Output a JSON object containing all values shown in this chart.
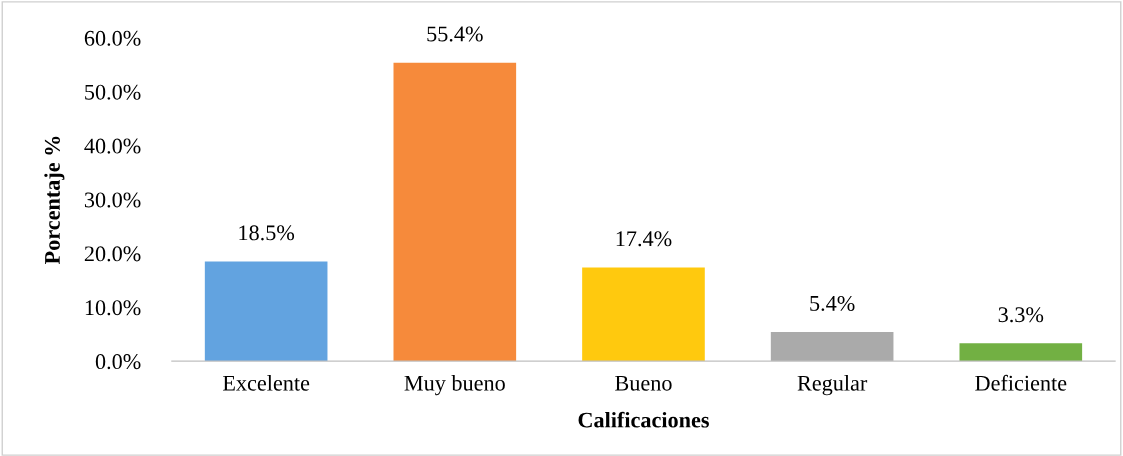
{
  "chart_data": {
    "type": "bar",
    "xlabel": "Calificaciones",
    "ylabel": "Porcentaje %",
    "categories": [
      "Excelente",
      "Muy bueno",
      "Bueno",
      "Regular",
      "Deficiente"
    ],
    "values": [
      18.5,
      55.4,
      17.4,
      5.4,
      3.3
    ],
    "colors": [
      "#62a3e0",
      "#f68a3b",
      "#ffc90e",
      "#aaaaaa",
      "#72b043"
    ],
    "value_labels": [
      "18.5%",
      "55.4%",
      "17.4%",
      "5.4%",
      "3.3%"
    ],
    "ylim": [
      0,
      60
    ],
    "yticks": [
      {
        "value": 0,
        "label": "0.0%"
      },
      {
        "value": 10,
        "label": "10.0%"
      },
      {
        "value": 20,
        "label": "20.0%"
      },
      {
        "value": 30,
        "label": "30.0%"
      },
      {
        "value": 40,
        "label": "40.0%"
      },
      {
        "value": 50,
        "label": "50.0%"
      },
      {
        "value": 60,
        "label": "60.0%"
      }
    ],
    "grid": false,
    "legend": false
  }
}
